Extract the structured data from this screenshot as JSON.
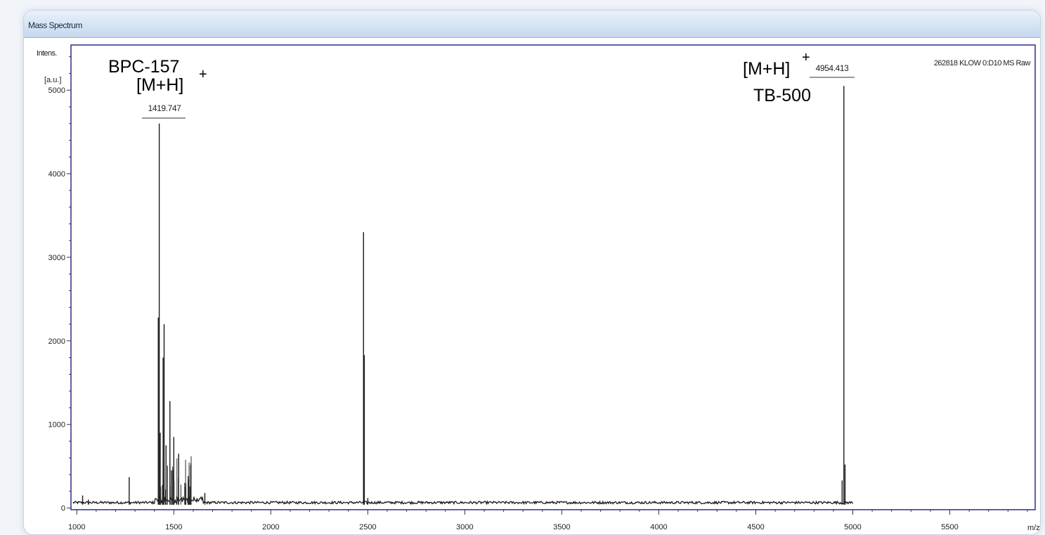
{
  "window": {
    "title": "Mass Spectrum"
  },
  "colors": {
    "frame": "#2a2f8a",
    "trace": "#1a1a1a",
    "titlebar": "#c6d8ee"
  },
  "chart_data": {
    "type": "line",
    "xlabel": "m/z",
    "ylabel_line1": "Intens.",
    "ylabel_line2": "[a.u.]",
    "xlim": [
      970,
      5940
    ],
    "ylim": [
      -20,
      5540
    ],
    "xticks": [
      1000,
      1500,
      2000,
      2500,
      3000,
      3500,
      4000,
      4500,
      5000,
      5500
    ],
    "yticks": [
      0,
      1000,
      2000,
      3000,
      4000,
      5000
    ],
    "spectrum_label": "262818 KLOW 0:D10 MS Raw",
    "trace_end_x": 5000,
    "peaks": [
      {
        "x": 1030,
        "y": 150
      },
      {
        "x": 1060,
        "y": 100
      },
      {
        "x": 1270,
        "y": 370
      },
      {
        "x": 1420,
        "y": 2280
      },
      {
        "x": 1425,
        "y": 4600
      },
      {
        "x": 1430,
        "y": 900
      },
      {
        "x": 1445,
        "y": 1800
      },
      {
        "x": 1450,
        "y": 2200
      },
      {
        "x": 1460,
        "y": 750
      },
      {
        "x": 1480,
        "y": 1280
      },
      {
        "x": 1488,
        "y": 450
      },
      {
        "x": 1500,
        "y": 850
      },
      {
        "x": 1525,
        "y": 650
      },
      {
        "x": 1560,
        "y": 250
      },
      {
        "x": 1660,
        "y": 180
      },
      {
        "x": 2478,
        "y": 3300
      },
      {
        "x": 2482,
        "y": 1830
      },
      {
        "x": 2500,
        "y": 120
      },
      {
        "x": 4945,
        "y": 330
      },
      {
        "x": 4954,
        "y": 5050
      },
      {
        "x": 4960,
        "y": 520
      }
    ],
    "peak_labels": [
      {
        "mz": "1419.747",
        "x": 1425,
        "y": 4600
      },
      {
        "mz": "4954.413",
        "x": 4954,
        "y": 5050
      }
    ],
    "annotations": [
      {
        "name": "BPC-157",
        "ion": "[M+H]",
        "charge": "+"
      },
      {
        "name": "TB-500",
        "ion": "[M+H]",
        "charge": "+"
      }
    ]
  }
}
